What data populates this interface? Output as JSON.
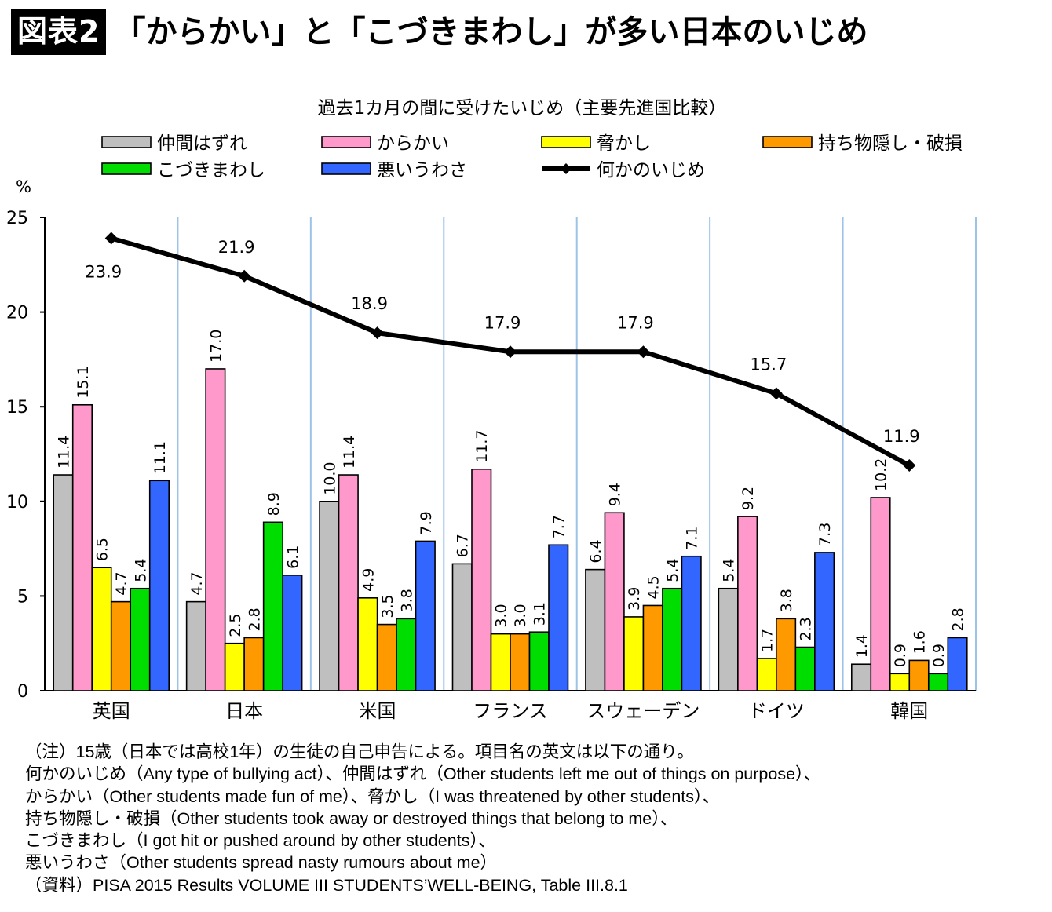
{
  "header": {
    "badge": "図表2",
    "title": "「からかい」と「こづきまわし」が多い日本のいじめ"
  },
  "chart_data": {
    "type": "bar",
    "title": "過去1カ月の間に受けたいじめ（主要先進国比較）",
    "ylabel": "%",
    "ylim": [
      0,
      25
    ],
    "yticks": [
      "0",
      "5",
      "10",
      "15",
      "20",
      "25"
    ],
    "categories": [
      "英国",
      "日本",
      "米国",
      "フランス",
      "スウェーデン",
      "ドイツ",
      "韓国"
    ],
    "legend_position": "top",
    "series": [
      {
        "name": "仲間はずれ",
        "color": "#bfbfbf",
        "values": [
          11.4,
          4.7,
          10.0,
          6.7,
          6.4,
          5.4,
          1.4
        ],
        "labels": [
          "11.4",
          "4.7",
          "10.0",
          "6.7",
          "6.4",
          "5.4",
          "1.4"
        ]
      },
      {
        "name": "からかい",
        "color": "#ff99cc",
        "values": [
          15.1,
          17.0,
          11.4,
          11.7,
          9.4,
          9.2,
          10.2
        ],
        "labels": [
          "15.1",
          "17.0",
          "11.4",
          "11.7",
          "9.4",
          "9.2",
          "10.2"
        ]
      },
      {
        "name": "脅かし",
        "color": "#ffff00",
        "values": [
          6.5,
          2.5,
          4.9,
          3.0,
          3.9,
          1.7,
          0.9
        ],
        "labels": [
          "6.5",
          "2.5",
          "4.9",
          "3.0",
          "3.9",
          "1.7",
          "0.9"
        ]
      },
      {
        "name": "持ち物隠し・破損",
        "color": "#ff9900",
        "values": [
          4.7,
          2.8,
          3.5,
          3.0,
          4.5,
          3.8,
          1.6
        ],
        "labels": [
          "4.7",
          "2.8",
          "3.5",
          "3.0",
          "4.5",
          "3.8",
          "1.6"
        ]
      },
      {
        "name": "こづきまわし",
        "color": "#00dd00",
        "values": [
          5.4,
          8.9,
          3.8,
          3.1,
          5.4,
          2.3,
          0.9
        ],
        "labels": [
          "5.4",
          "8.9",
          "3.8",
          "3.1",
          "5.4",
          "2.3",
          "0.9"
        ]
      },
      {
        "name": "悪いうわさ",
        "color": "#3366ff",
        "values": [
          11.1,
          6.1,
          7.9,
          7.7,
          7.1,
          7.3,
          2.8
        ],
        "labels": [
          "11.1",
          "6.1",
          "7.9",
          "7.7",
          "7.1",
          "7.3",
          "2.8"
        ]
      }
    ],
    "line": {
      "name": "何かのいじめ",
      "color": "#000000",
      "values": [
        23.9,
        21.9,
        18.9,
        17.9,
        17.9,
        15.7,
        11.9
      ],
      "labels": [
        "23.9",
        "21.9",
        "18.9",
        "17.9",
        "17.9",
        "15.7",
        "11.9"
      ]
    }
  },
  "notes": [
    "（注）15歳（日本では高校1年）の生徒の自己申告による。項目名の英文は以下の通り。",
    "何かのいじめ（Any type of bullying act）、仲間はずれ（Other students left me out of things on purpose）、",
    "からかい（Other students made fun of me）、脅かし（I was threatened by other students）、",
    "持ち物隠し・破損（Other students took away or destroyed things that belong to me）、",
    "こづきまわし（I got hit or pushed around by other students）、",
    "悪いうわさ（Other students spread nasty rumours about me）",
    "（資料）PISA 2015 Results VOLUME III STUDENTS’WELL-BEING, Table III.8.1"
  ]
}
